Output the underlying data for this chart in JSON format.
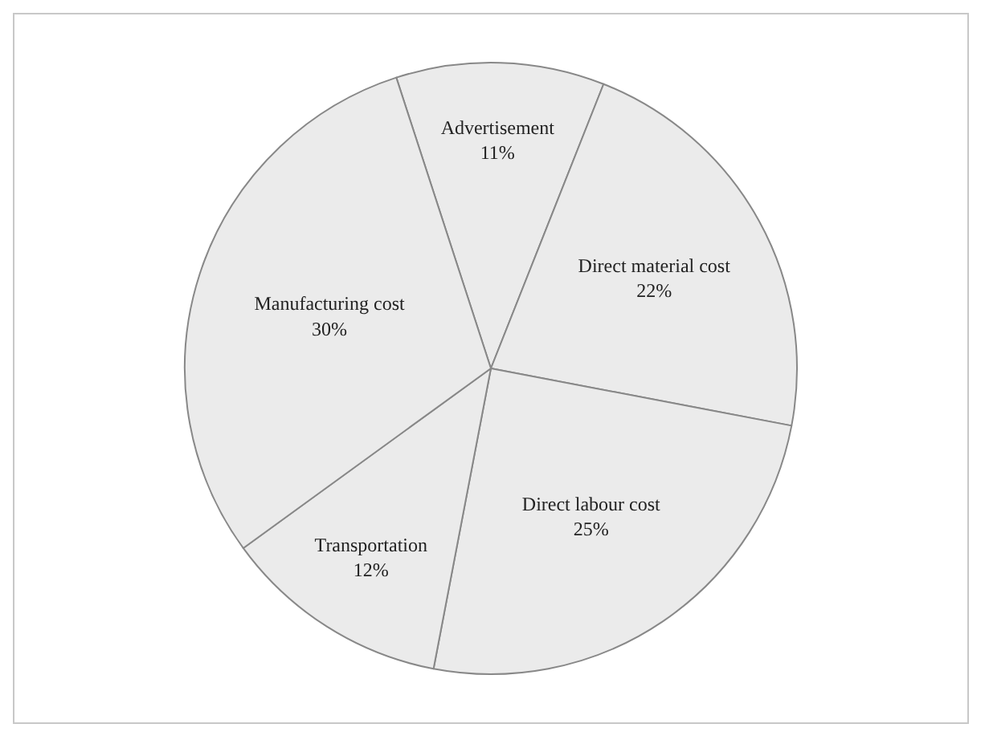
{
  "chart_data": {
    "type": "pie",
    "categories": [
      "Advertisement",
      "Direct material cost",
      "Direct labour cost",
      "Transportation",
      "Manufacturing cost"
    ],
    "values": [
      11,
      22,
      25,
      12,
      30
    ],
    "value_labels": [
      "11%",
      "22%",
      "25%",
      "12%",
      "30%"
    ],
    "colors": [
      "#ebebeb",
      "#ebebeb",
      "#ebebeb",
      "#ebebeb",
      "#ebebeb"
    ],
    "legend": false
  }
}
